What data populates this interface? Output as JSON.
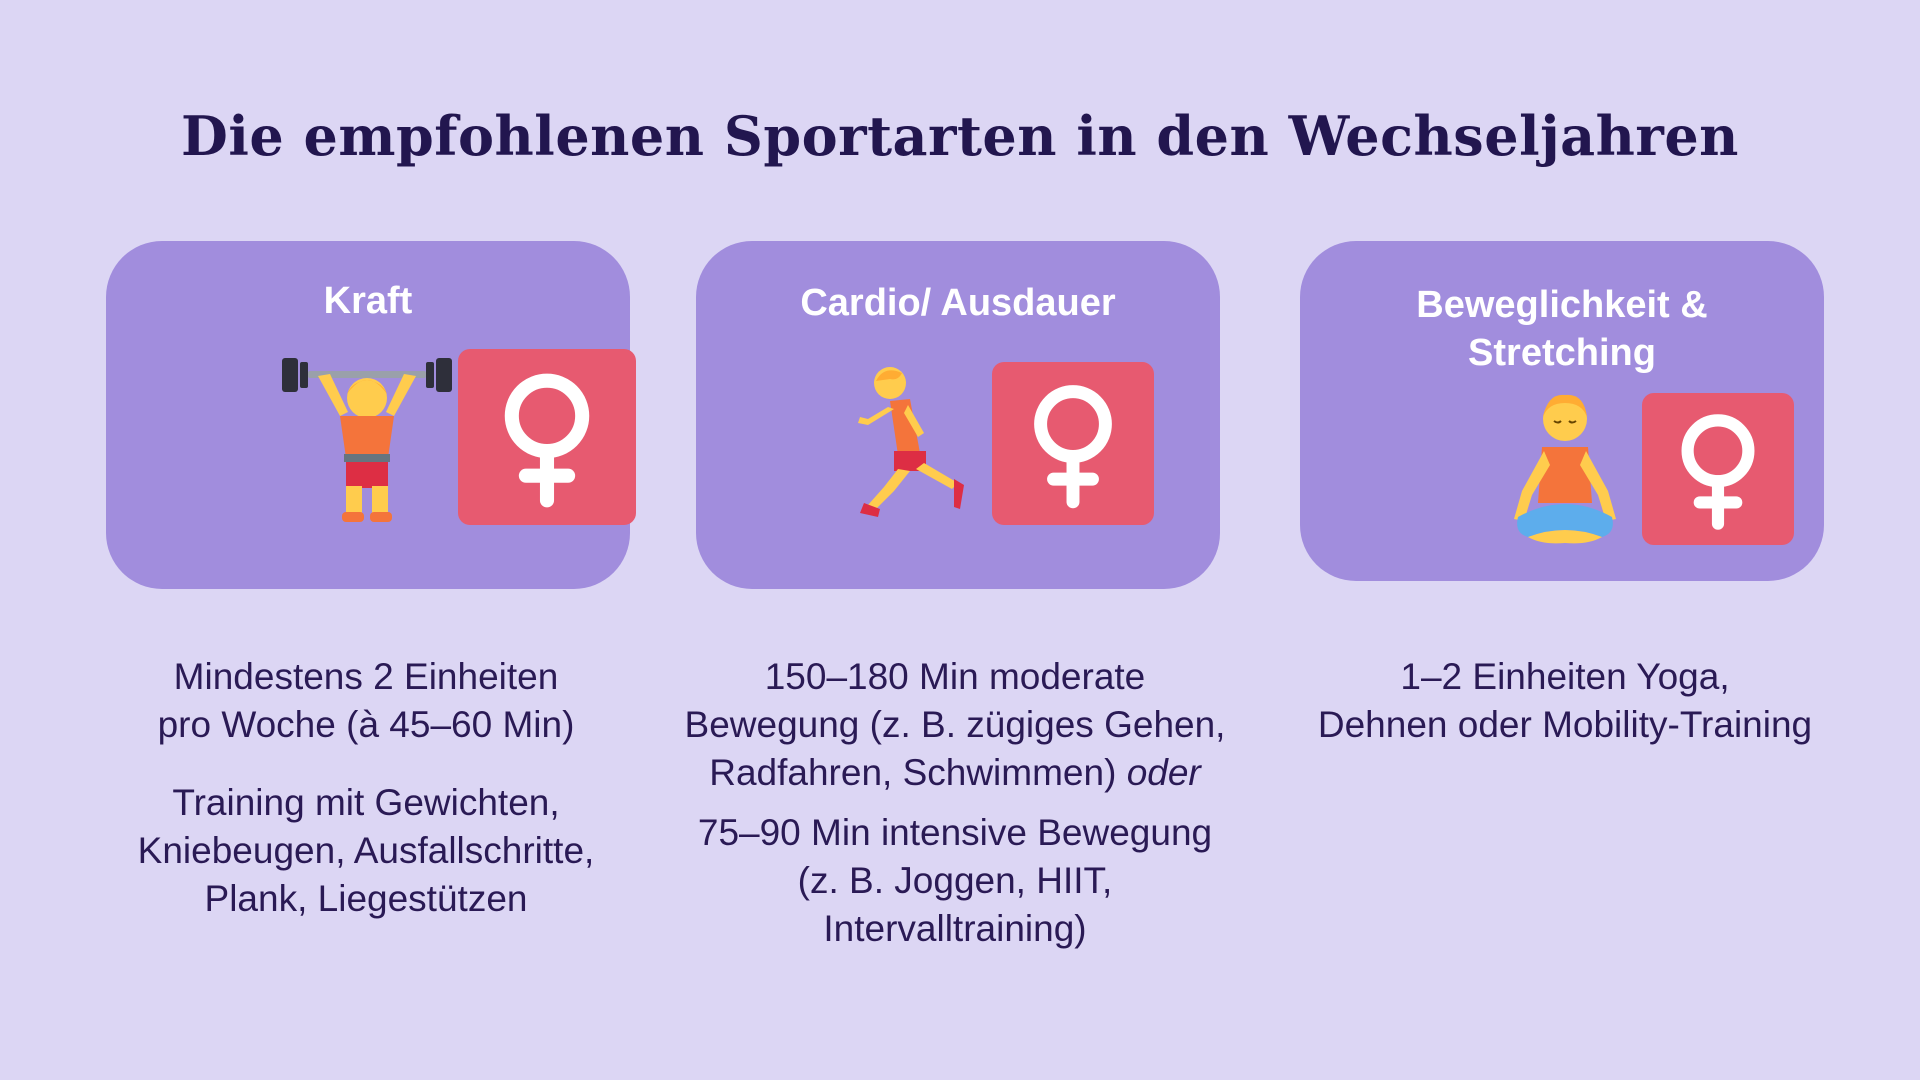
{
  "title": "Die empfohlenen Sportarten in den Wechseljahren",
  "colors": {
    "background": "#dcd6f4",
    "card": "#a18ddd",
    "venus_tile": "#e75a70",
    "title_text": "#22164f",
    "body_text": "#2a1a55"
  },
  "cards": [
    {
      "title": "Kraft",
      "figure_icon": "weightlifter-icon",
      "badge_icon": "venus-icon",
      "text1": "Mindestens 2 Einheiten",
      "text2": "pro Woche (à 45–60 Min)",
      "text3": "Training mit Gewichten,",
      "text4": "Kniebeugen, Ausfallschritte,",
      "text5": "Plank, Liegestützen"
    },
    {
      "title": "Cardio/ Ausdauer",
      "figure_icon": "runner-icon",
      "badge_icon": "venus-icon",
      "text1": "150–180 Min moderate",
      "text2": "Bewegung (z. B. zügiges Gehen,",
      "text3": "Radfahren, Schwimmen) ",
      "text3_italic": "oder",
      "text4": "75–90 Min intensive Bewegung",
      "text5": "(z. B. Joggen, HIIT,",
      "text6": "Intervalltraining)"
    },
    {
      "title_line1": "Beweglichkeit &",
      "title_line2": "Stretching",
      "figure_icon": "yoga-meditation-icon",
      "badge_icon": "venus-icon",
      "text1": "1–2 Einheiten Yoga,",
      "text2": "Dehnen oder Mobility-Training"
    }
  ]
}
